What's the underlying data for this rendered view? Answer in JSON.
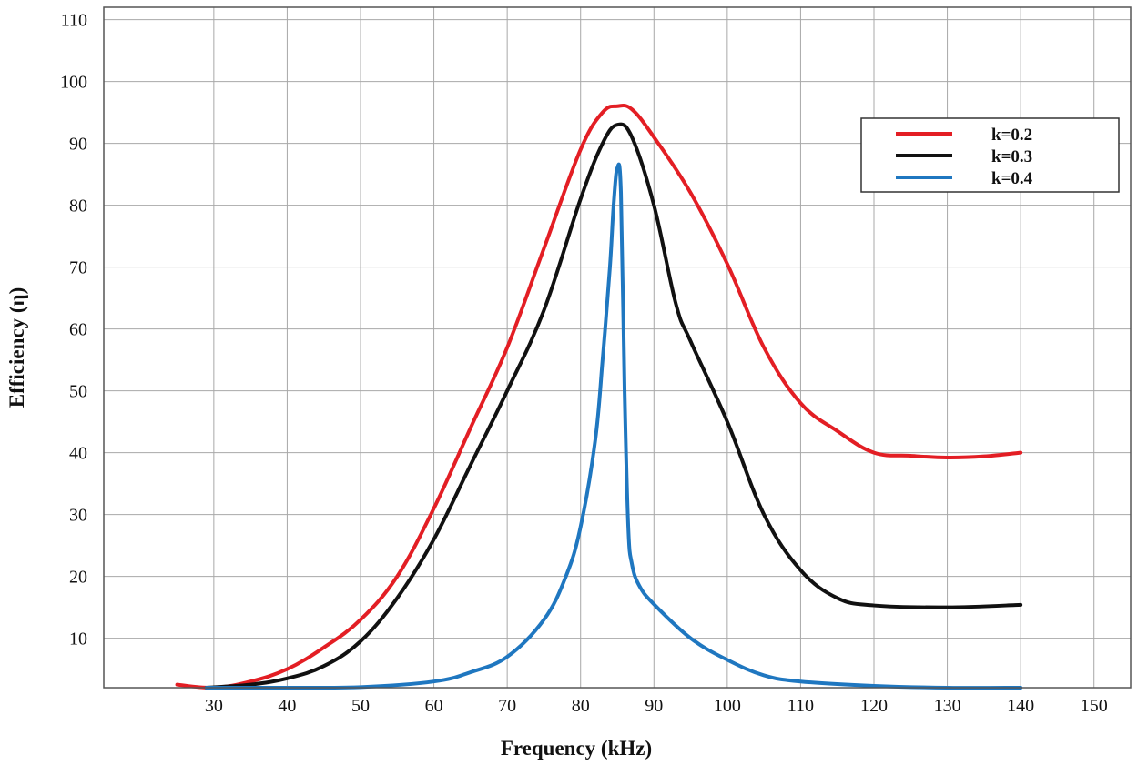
{
  "chart_data": {
    "type": "line",
    "title": "",
    "xlabel": "Frequency (kHz)",
    "ylabel": "Efficiency (η)",
    "xlim": [
      15,
      155
    ],
    "ylim": [
      2,
      112
    ],
    "xticks": [
      30,
      40,
      50,
      60,
      70,
      80,
      90,
      100,
      110,
      120,
      130,
      140,
      150
    ],
    "yticks": [
      10,
      20,
      30,
      40,
      50,
      60,
      70,
      80,
      90,
      100,
      110
    ],
    "grid": true,
    "legend_position": "top-right",
    "series": [
      {
        "name": "k=0.2",
        "color": "#e31e24",
        "x": [
          25,
          30,
          35,
          40,
          45,
          50,
          55,
          60,
          65,
          70,
          75,
          80,
          83,
          85,
          87,
          90,
          95,
          100,
          105,
          110,
          115,
          120,
          125,
          130,
          135,
          140
        ],
        "y": [
          2.5,
          2.0,
          3.0,
          5.0,
          8.5,
          13.0,
          20.0,
          31.0,
          44.0,
          57.0,
          73.0,
          89.0,
          95.0,
          96.0,
          95.5,
          91.0,
          82.0,
          70.5,
          57.0,
          48.0,
          43.5,
          40.0,
          39.5,
          39.2,
          39.4,
          40.0
        ]
      },
      {
        "name": "k=0.3",
        "color": "#111111",
        "x": [
          29,
          35,
          40,
          45,
          50,
          55,
          60,
          65,
          70,
          75,
          80,
          83,
          85,
          87,
          90,
          93,
          95,
          100,
          105,
          110,
          115,
          120,
          130,
          140
        ],
        "y": [
          2.0,
          2.5,
          3.5,
          5.5,
          9.5,
          16.5,
          26.0,
          38.0,
          50.0,
          63.0,
          81.0,
          90.0,
          93.0,
          91.0,
          80.0,
          64.0,
          58.0,
          45.0,
          30.0,
          21.0,
          16.5,
          15.3,
          15.0,
          15.4
        ]
      },
      {
        "name": "k=0.4",
        "color": "#1f77c0",
        "x": [
          29,
          40,
          50,
          60,
          65,
          70,
          75,
          78,
          80,
          82,
          83,
          84,
          84.5,
          85,
          85.5,
          86,
          86.5,
          87,
          88,
          90,
          95,
          100,
          105,
          110,
          120,
          130,
          140
        ],
        "y": [
          2.0,
          2.0,
          2.1,
          3.0,
          4.5,
          7.0,
          13.0,
          20.0,
          28.0,
          42.0,
          55.0,
          70.0,
          80.0,
          86.0,
          82.0,
          50.0,
          28.0,
          22.0,
          18.5,
          15.5,
          10.0,
          6.5,
          4.0,
          3.0,
          2.3,
          2.0,
          2.0
        ]
      }
    ]
  }
}
